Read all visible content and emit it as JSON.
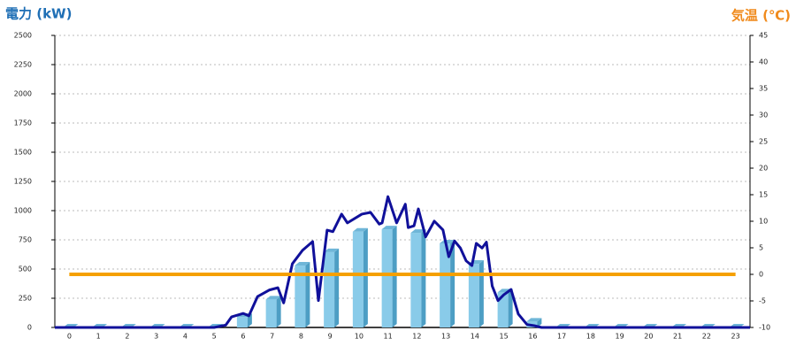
{
  "chart_data": {
    "type": "bar",
    "title": "電力 (kW)",
    "y2_title": "気温 (℃)",
    "categories": [
      "0",
      "1",
      "2",
      "3",
      "4",
      "5",
      "6",
      "7",
      "8",
      "9",
      "10",
      "11",
      "12",
      "13",
      "14",
      "15",
      "16",
      "17",
      "18",
      "19",
      "20",
      "21",
      "22",
      "23"
    ],
    "xlim": [
      0,
      24
    ],
    "ylim": [
      0,
      2500
    ],
    "yticks": [
      0,
      250,
      500,
      750,
      1000,
      1250,
      1500,
      1750,
      2000,
      2250,
      2500
    ],
    "y2lim": [
      -10,
      45
    ],
    "y2ticks": [
      -10,
      -5,
      0,
      5,
      10,
      15,
      20,
      25,
      30,
      35,
      40,
      45
    ],
    "grid": true,
    "series": [
      {
        "type": "bar",
        "color": "#89cbe9",
        "values": [
          0,
          0,
          0,
          0,
          0,
          0,
          90,
          240,
          530,
          645,
          820,
          840,
          810,
          720,
          545,
          300,
          50,
          0,
          0,
          0,
          0,
          0,
          0,
          0
        ]
      },
      {
        "type": "line",
        "color": "#10109a",
        "x": [
          0,
          5.5,
          5.9,
          6.1,
          6.5,
          6.7,
          7.0,
          7.4,
          7.7,
          7.9,
          8.2,
          8.55,
          8.9,
          9.1,
          9.4,
          9.6,
          9.9,
          10.1,
          10.6,
          10.9,
          11.2,
          11.3,
          11.5,
          11.8,
          12.1,
          12.2,
          12.4,
          12.55,
          12.8,
          13.1,
          13.4,
          13.6,
          13.8,
          14.0,
          14.2,
          14.4,
          14.55,
          14.75,
          14.9,
          15.1,
          15.3,
          15.5,
          15.75,
          16.0,
          16.3,
          16.55,
          16.8,
          24
        ],
        "values": [
          0,
          0,
          20,
          90,
          120,
          100,
          265,
          320,
          340,
          210,
          545,
          660,
          735,
          230,
          833,
          820,
          970,
          895,
          970,
          985,
          885,
          895,
          1120,
          895,
          1055,
          855,
          870,
          1015,
          775,
          910,
          835,
          605,
          740,
          680,
          570,
          530,
          720,
          680,
          730,
          355,
          230,
          280,
          325,
          115,
          25,
          15,
          0,
          0
        ]
      },
      {
        "type": "line",
        "axis": "y2",
        "color": "#f5a000",
        "values": [
          0,
          0,
          0,
          0,
          0,
          0,
          0,
          0,
          0,
          0,
          0,
          0,
          0,
          0,
          0,
          0,
          0,
          0,
          0,
          0,
          0,
          0,
          0,
          0
        ]
      }
    ]
  }
}
